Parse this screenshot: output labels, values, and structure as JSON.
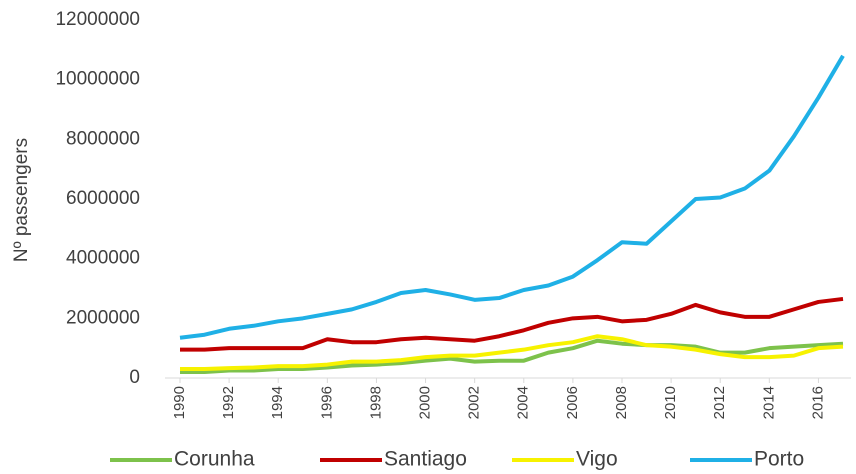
{
  "chart_data": {
    "type": "line",
    "y_label": "Nº passengers",
    "x": [
      1990,
      1991,
      1992,
      1993,
      1994,
      1995,
      1996,
      1997,
      1998,
      1999,
      2000,
      2001,
      2002,
      2003,
      2004,
      2005,
      2006,
      2007,
      2008,
      2009,
      2010,
      2011,
      2012,
      2013,
      2014,
      2015,
      2016,
      2017
    ],
    "xlim": [
      1990,
      2017
    ],
    "xticks": [
      1990,
      1992,
      1994,
      1996,
      1998,
      2000,
      2002,
      2004,
      2006,
      2008,
      2010,
      2012,
      2014,
      2016
    ],
    "ylim": [
      0,
      12000000
    ],
    "yticks": [
      0,
      2000000,
      4000000,
      6000000,
      8000000,
      10000000,
      12000000
    ],
    "grid": false,
    "legend": "bottom",
    "series": [
      {
        "name": "Corunha",
        "color": "#7dc24b",
        "values": [
          200000,
          200000,
          250000,
          250000,
          300000,
          300000,
          350000,
          420000,
          450000,
          500000,
          580000,
          650000,
          550000,
          580000,
          580000,
          850000,
          1000000,
          1250000,
          1150000,
          1100000,
          1100000,
          1050000,
          850000,
          850000,
          1000000,
          1050000,
          1100000,
          1150000
        ]
      },
      {
        "name": "Santiago",
        "color": "#c00000",
        "values": [
          950000,
          950000,
          1000000,
          1000000,
          1000000,
          1000000,
          1300000,
          1200000,
          1200000,
          1300000,
          1350000,
          1300000,
          1250000,
          1400000,
          1600000,
          1850000,
          2000000,
          2050000,
          1900000,
          1950000,
          2150000,
          2450000,
          2200000,
          2050000,
          2050000,
          2300000,
          2550000,
          2650000
        ]
      },
      {
        "name": "Vigo",
        "color": "#f7f200",
        "values": [
          300000,
          300000,
          330000,
          350000,
          400000,
          400000,
          450000,
          550000,
          550000,
          600000,
          700000,
          750000,
          750000,
          850000,
          950000,
          1100000,
          1200000,
          1400000,
          1300000,
          1100000,
          1050000,
          950000,
          800000,
          700000,
          700000,
          750000,
          1000000,
          1050000
        ]
      },
      {
        "name": "Porto",
        "color": "#1fb0e6",
        "values": [
          1350000,
          1450000,
          1650000,
          1750000,
          1900000,
          2000000,
          2150000,
          2300000,
          2550000,
          2850000,
          2950000,
          2800000,
          2620000,
          2680000,
          2950000,
          3100000,
          3400000,
          3950000,
          4550000,
          4500000,
          5250000,
          6000000,
          6050000,
          6350000,
          6950000,
          8100000,
          9400000,
          10800000
        ]
      }
    ]
  }
}
